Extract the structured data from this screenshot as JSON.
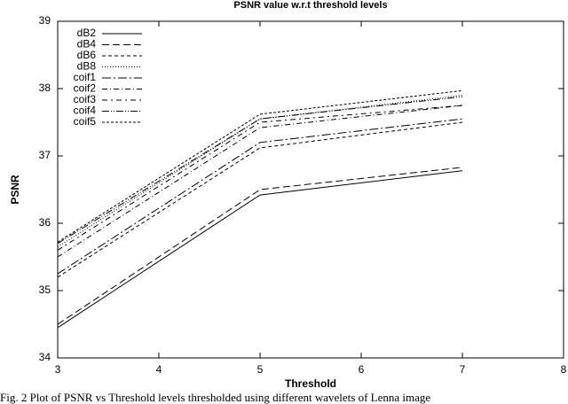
{
  "chart_data": {
    "type": "line",
    "title": "PSNR value w.r.t threshold levels",
    "x_label": "Threshold",
    "y_label": "PSNR",
    "x": [
      3,
      5,
      7
    ],
    "series": [
      {
        "name": "dB2",
        "color": "#000000",
        "dash": "",
        "values": [
          34.45,
          36.42,
          36.78
        ]
      },
      {
        "name": "dB4",
        "color": "#000000",
        "dash": "8 4",
        "values": [
          34.5,
          36.5,
          36.83
        ]
      },
      {
        "name": "dB6",
        "color": "#000000",
        "dash": "4 3",
        "values": [
          35.2,
          37.12,
          37.5
        ]
      },
      {
        "name": "dB8",
        "color": "#000000",
        "dash": "1 2",
        "values": [
          35.65,
          37.55,
          37.9
        ]
      },
      {
        "name": "coif1",
        "color": "#000000",
        "dash": "10 3 2 3",
        "values": [
          35.25,
          37.2,
          37.55
        ]
      },
      {
        "name": "coif2",
        "color": "#000000",
        "dash": "6 3 1 3",
        "values": [
          35.5,
          37.42,
          37.75
        ]
      },
      {
        "name": "coif3",
        "color": "#000000",
        "dash": "6 4 2 4",
        "values": [
          35.6,
          37.5,
          37.75
        ]
      },
      {
        "name": "coif4",
        "color": "#000000",
        "dash": "8 2 1 2 1 2",
        "values": [
          35.7,
          37.55,
          37.88
        ]
      },
      {
        "name": "coif5",
        "color": "#000000",
        "dash": "3 2",
        "values": [
          35.72,
          37.62,
          37.97
        ]
      }
    ],
    "xlim": [
      3,
      8
    ],
    "xticks": [
      3,
      4,
      5,
      6,
      7,
      8
    ],
    "ylim": [
      34,
      39
    ],
    "yticks": [
      34,
      35,
      36,
      37,
      38,
      39
    ],
    "grid": false,
    "legend": "upper left"
  },
  "caption": "Fig. 2 Plot of PSNR vs Threshold levels thresholded using different wavelets of Lenna image"
}
